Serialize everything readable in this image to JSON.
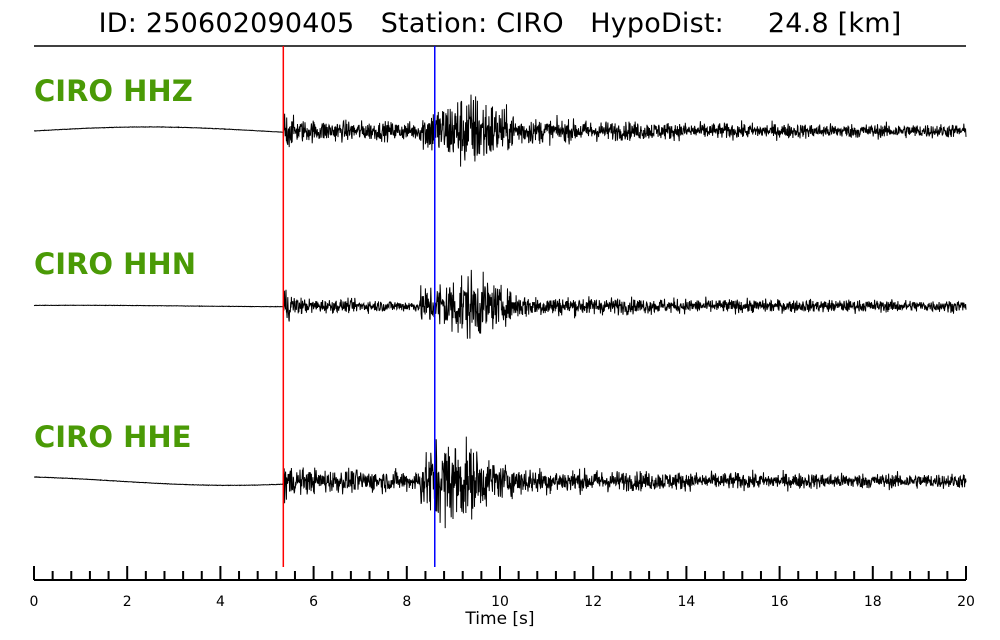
{
  "header": {
    "id_label": "ID:",
    "id_value": "250602090405",
    "station_label": "Station:",
    "station_value": "CIRO",
    "dist_label": "HypoDist:",
    "dist_value": "24.8",
    "dist_unit": "[km]"
  },
  "chart_data": {
    "type": "line",
    "title": "ID: 250602090405   Station: CIRO   HypoDist:     24.8 [km]",
    "xlabel": "Time [s]",
    "xlim": [
      0,
      20
    ],
    "x_ticks": [
      0,
      2,
      4,
      6,
      8,
      10,
      12,
      14,
      16,
      18,
      20
    ],
    "x_minor_step": 0.4,
    "grid": false,
    "label_color": "#4a9a06",
    "trace_color": "#000000",
    "picks": [
      {
        "phase": "P",
        "time": 5.35,
        "color": "#ff0000"
      },
      {
        "phase": "S",
        "time": 8.6,
        "color": "#0000ff"
      }
    ],
    "series": [
      {
        "name": "CIRO HHZ",
        "peak_time": 9.4,
        "coda_level": 0.16
      },
      {
        "name": "CIRO HHN",
        "peak_time": 9.3,
        "coda_level": 0.08
      },
      {
        "name": "CIRO HHE",
        "peak_time": 9.0,
        "coda_level": 0.18
      }
    ]
  }
}
